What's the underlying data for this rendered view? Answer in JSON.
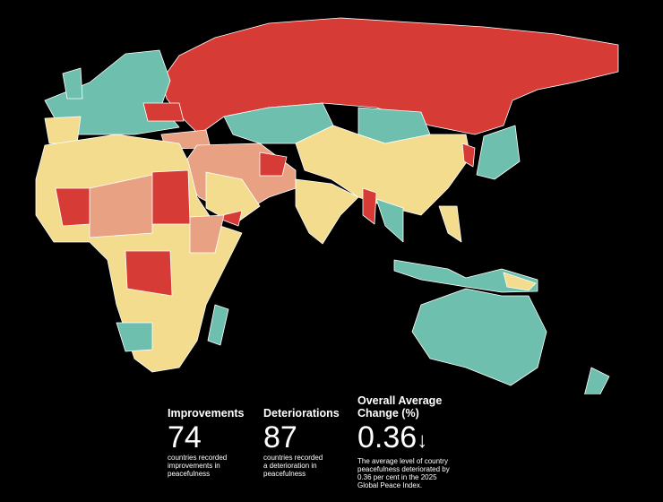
{
  "stats": [
    {
      "title": "Improvements",
      "value": 74,
      "description": "countries recorded improvements in peacefulness"
    },
    {
      "title": "Deteriorations",
      "value": 87,
      "description": "countries recorded a deterioration in peacefulness"
    },
    {
      "title": "Overall Average Change (%)",
      "value": 0.36,
      "arrow": "↓",
      "description": "The average level of country peacefulness deteriorated by 0.36 per cent in the 2025 Global Peace Index."
    }
  ]
}
